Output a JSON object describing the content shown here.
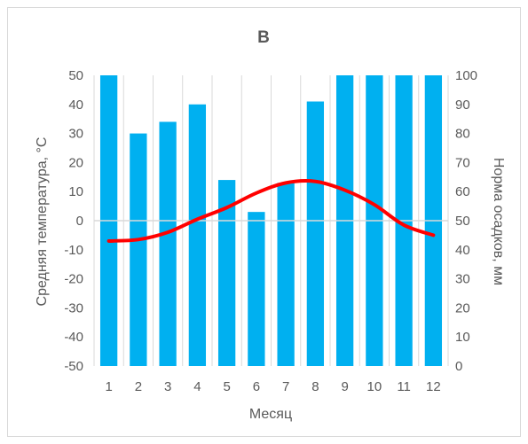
{
  "chart_data": {
    "type": "bar",
    "title": "В",
    "xlabel": "Месяц",
    "ylabel": "Средняя температура, °С",
    "y2label": "Норма осадков, мм",
    "categories": [
      "1",
      "2",
      "3",
      "4",
      "5",
      "6",
      "7",
      "8",
      "9",
      "10",
      "11",
      "12"
    ],
    "ylim": [
      -50,
      50
    ],
    "y2lim": [
      0,
      100
    ],
    "yticks": [
      "50",
      "40",
      "30",
      "20",
      "10",
      "0",
      "-10",
      "-20",
      "-30",
      "-40",
      "-50"
    ],
    "y2ticks": [
      "100",
      "90",
      "80",
      "70",
      "60",
      "50",
      "40",
      "30",
      "20",
      "10",
      "0"
    ],
    "grid": "vertical",
    "series": [
      {
        "type": "bar",
        "axis": "secondary",
        "color": "#00b0f0",
        "values": [
          100,
          80,
          84,
          90,
          64,
          53,
          63,
          91,
          100,
          100,
          100,
          100
        ]
      },
      {
        "type": "line",
        "axis": "primary",
        "color": "#ff0000",
        "values": [
          -7,
          -6.5,
          -4,
          0.5,
          4.5,
          9.5,
          13,
          13.5,
          10.5,
          5.5,
          -1.5,
          -5
        ]
      }
    ]
  }
}
